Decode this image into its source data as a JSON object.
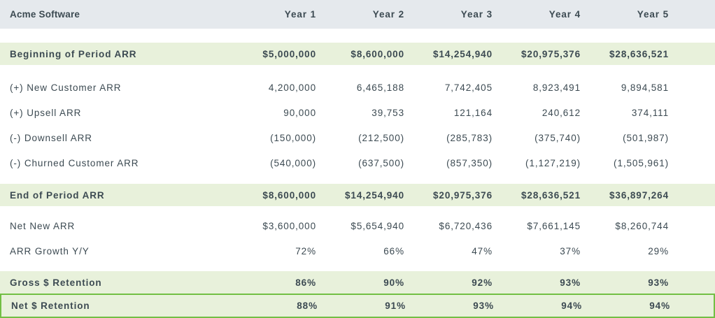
{
  "header": {
    "company": "Acme Software",
    "columns": [
      "Year 1",
      "Year 2",
      "Year 3",
      "Year 4",
      "Year 5"
    ]
  },
  "rows": [
    {
      "label": "Beginning of Period ARR",
      "style": "highlight",
      "values": [
        "$5,000,000",
        "$8,600,000",
        "$14,254,940",
        "$20,975,376",
        "$28,636,521"
      ]
    },
    {
      "label": "(+) New Customer ARR",
      "style": "plain",
      "values": [
        "4,200,000",
        "6,465,188",
        "7,742,405",
        "8,923,491",
        "9,894,581"
      ]
    },
    {
      "label": "(+) Upsell ARR",
      "style": "plain",
      "values": [
        "90,000",
        "39,753",
        "121,164",
        "240,612",
        "374,111"
      ]
    },
    {
      "label": "(-) Downsell ARR",
      "style": "plain",
      "values": [
        "(150,000)",
        "(212,500)",
        "(285,783)",
        "(375,740)",
        "(501,987)"
      ]
    },
    {
      "label": "(-) Churned Customer ARR",
      "style": "plain",
      "values": [
        "(540,000)",
        "(637,500)",
        "(857,350)",
        "(1,127,219)",
        "(1,505,961)"
      ]
    },
    {
      "label": "End of Period ARR",
      "style": "highlight",
      "values": [
        "$8,600,000",
        "$14,254,940",
        "$20,975,376",
        "$28,636,521",
        "$36,897,264"
      ]
    },
    {
      "label": "Net New ARR",
      "style": "plain",
      "values": [
        "$3,600,000",
        "$5,654,940",
        "$6,720,436",
        "$7,661,145",
        "$8,260,744"
      ]
    },
    {
      "label": "ARR Growth Y/Y",
      "style": "plain",
      "values": [
        "72%",
        "66%",
        "47%",
        "37%",
        "29%"
      ]
    },
    {
      "label": "Gross $ Retention",
      "style": "highlight",
      "values": [
        "86%",
        "90%",
        "92%",
        "93%",
        "93%"
      ]
    },
    {
      "label": "Net $ Retention",
      "style": "outlined",
      "values": [
        "88%",
        "91%",
        "93%",
        "94%",
        "94%"
      ]
    }
  ],
  "colors": {
    "header_bg": "#e5e9ed",
    "highlight_bg": "#e8f1db",
    "outline_green": "#72bf44",
    "text": "#3c4a52"
  }
}
